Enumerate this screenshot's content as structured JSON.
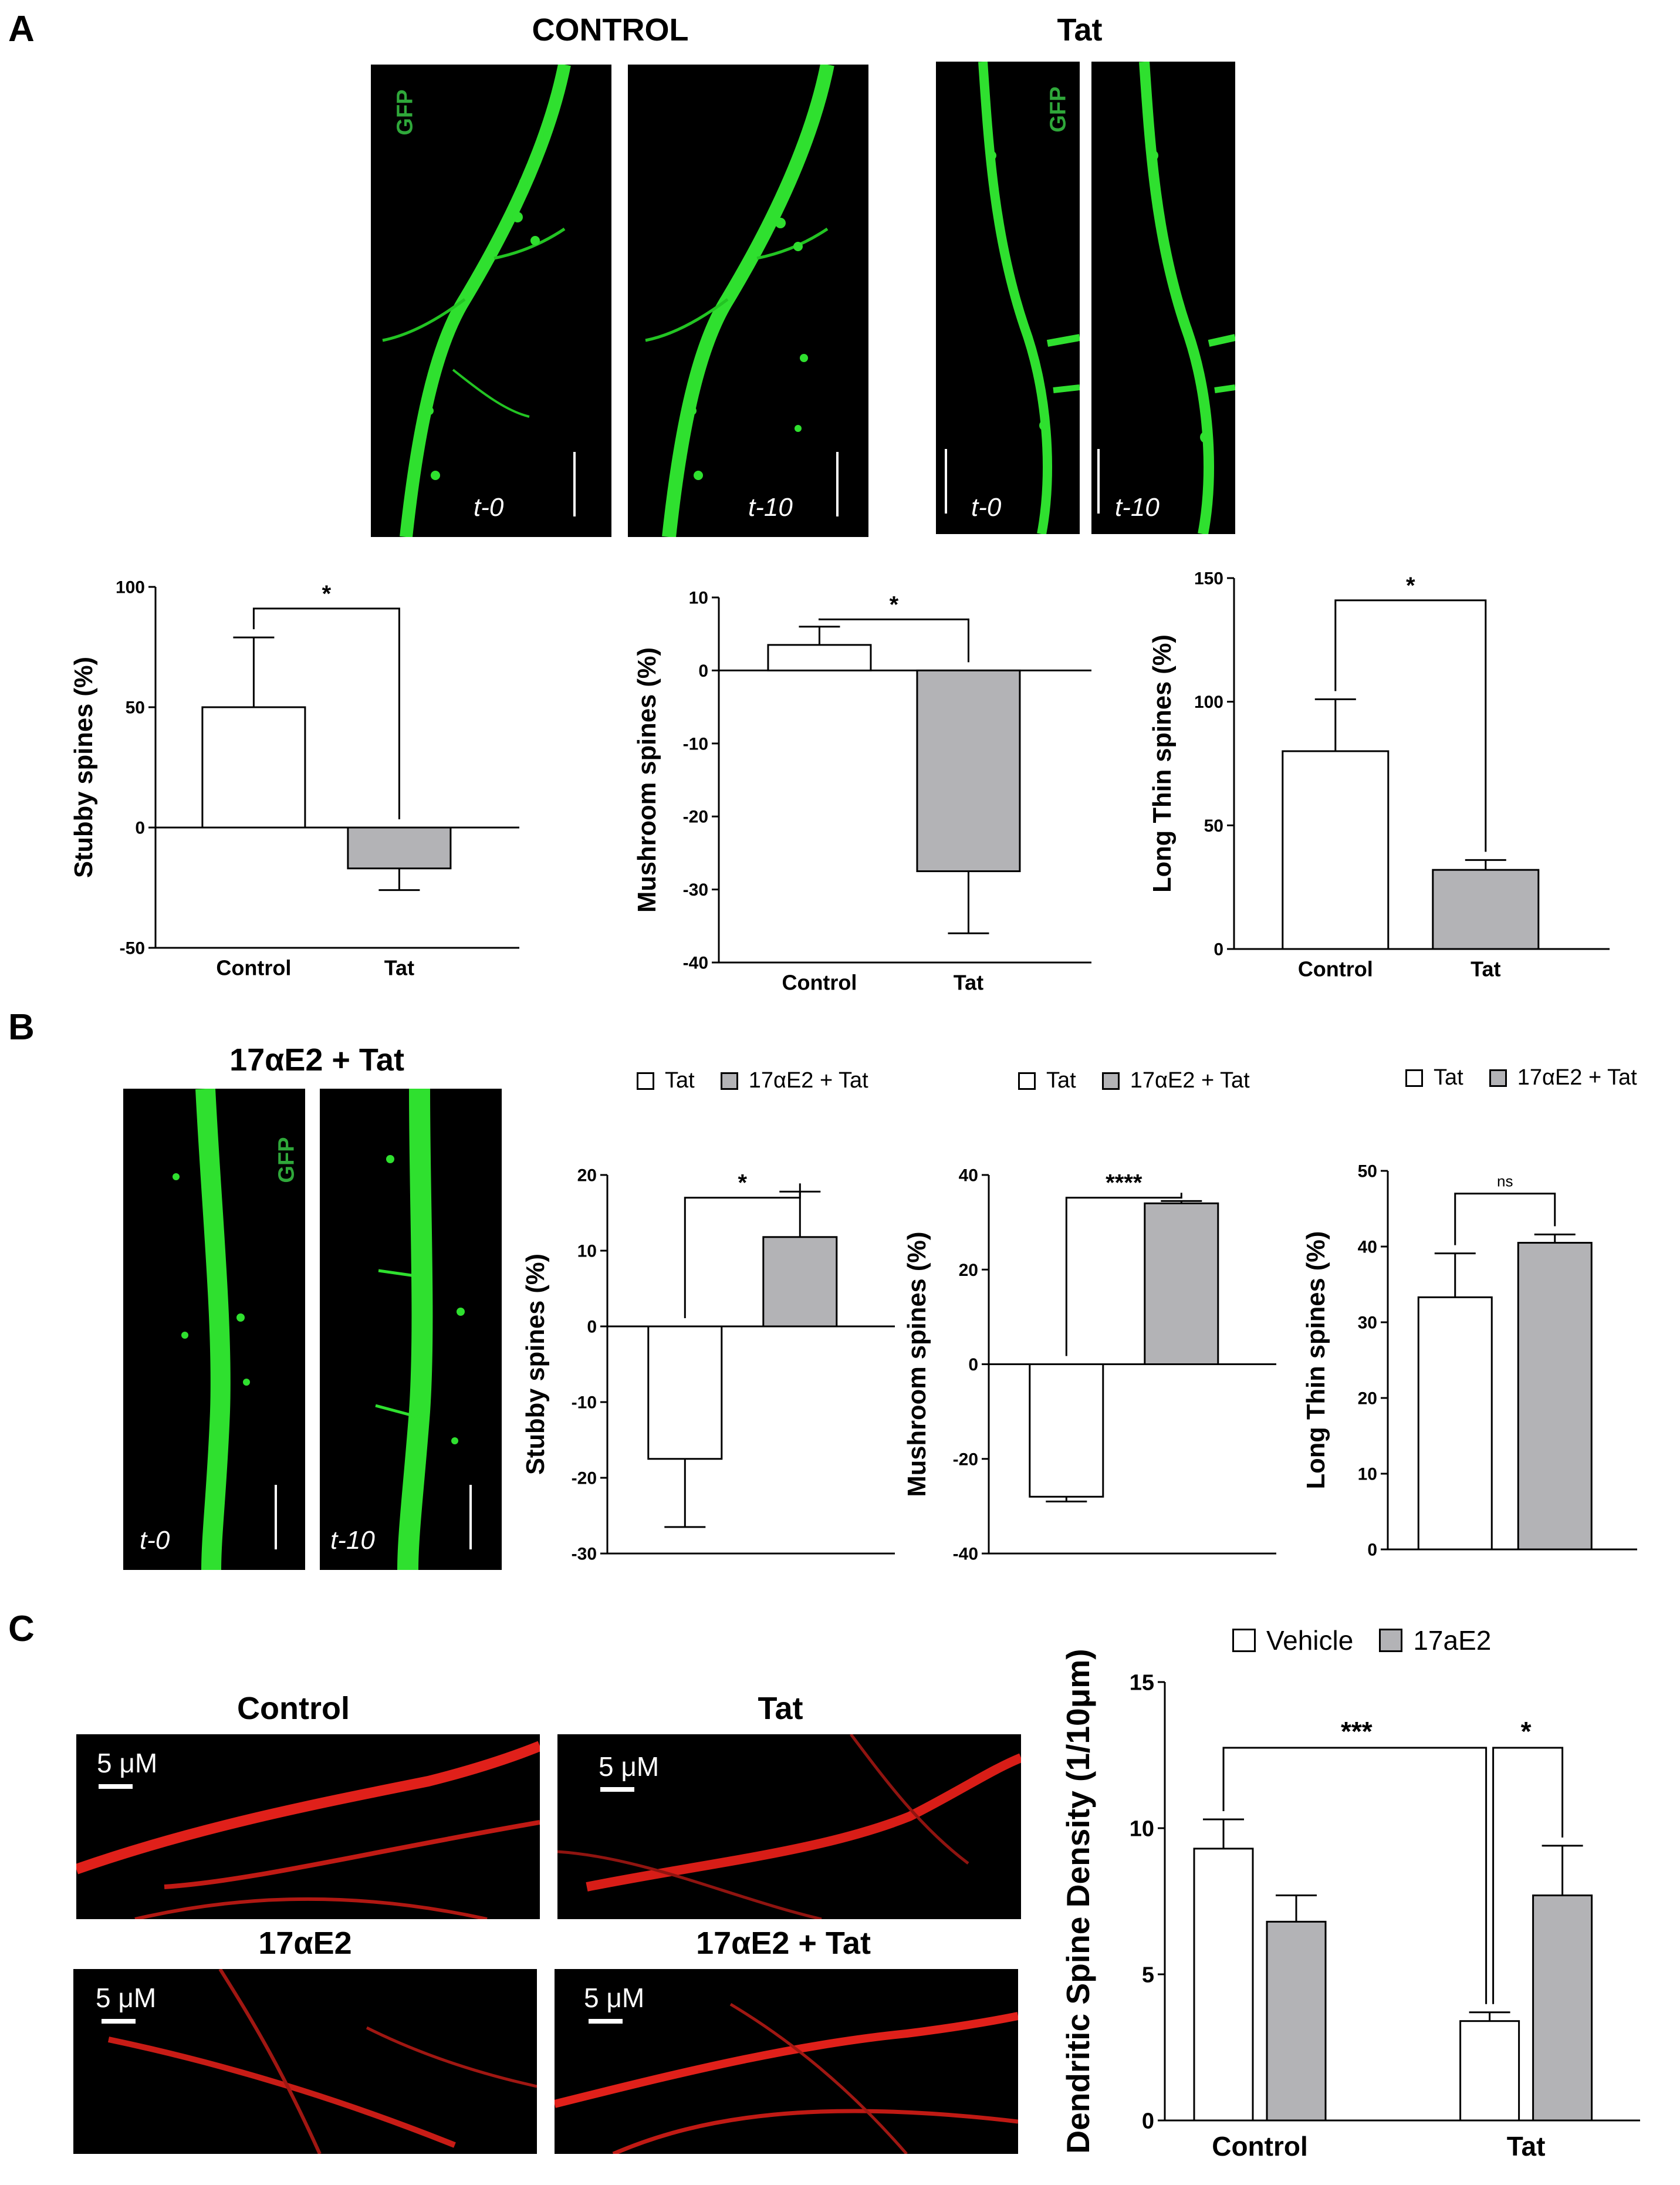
{
  "panel_labels": {
    "a": "A",
    "b": "B",
    "c": "C"
  },
  "panelA": {
    "control_title": "CONTROL",
    "tat_title": "Tat",
    "gfp": "GFP",
    "t0": "t-0",
    "t10": "t-10"
  },
  "panelB": {
    "title": "17αE2 + Tat",
    "gfp": "GFP",
    "t0": "t-0",
    "t10": "t-10",
    "legend": [
      "Tat",
      "17αE2 + Tat"
    ]
  },
  "panelC": {
    "titles": [
      "Control",
      "Tat",
      "17αE2",
      "17αE2 + Tat"
    ],
    "scale_label": "5 μM",
    "legend": [
      "Vehicle",
      "17aE2"
    ]
  },
  "colors": {
    "white_bar": "#ffffff",
    "gray_bar": "#b3b3b6",
    "gfp_green": "#2fa83a",
    "red_stain": "#e0201a"
  },
  "chart_data": [
    {
      "id": "A1",
      "type": "bar",
      "ylabel": "Stubby spines (%)",
      "categories": [
        "Control",
        "Tat"
      ],
      "values": [
        50,
        -17
      ],
      "errors": [
        29,
        9
      ],
      "ylim": [
        -50,
        100
      ],
      "yticks": [
        -50,
        0,
        50,
        100
      ],
      "sig": [
        {
          "from": 0,
          "to": 1,
          "label": "*"
        }
      ]
    },
    {
      "id": "A2",
      "type": "bar",
      "ylabel": "Mushroom spines (%)",
      "categories": [
        "Control",
        "Tat"
      ],
      "values": [
        3.5,
        -27.5
      ],
      "errors": [
        2.5,
        8.5
      ],
      "ylim": [
        -40,
        10
      ],
      "yticks": [
        -40,
        -30,
        -20,
        -10,
        0,
        10
      ],
      "sig": [
        {
          "from": 0,
          "to": 1,
          "label": "*"
        }
      ]
    },
    {
      "id": "A3",
      "type": "bar",
      "ylabel": "Long Thin spines (%)",
      "categories": [
        "Control",
        "Tat"
      ],
      "values": [
        80,
        32
      ],
      "errors": [
        21,
        4
      ],
      "ylim": [
        0,
        150
      ],
      "yticks": [
        0,
        50,
        100,
        150
      ],
      "sig": [
        {
          "from": 0,
          "to": 1,
          "label": "*"
        }
      ]
    },
    {
      "id": "B1",
      "type": "bar",
      "ylabel": "Stubby spines (%)",
      "categories": [
        "Tat",
        "17αE2 + Tat"
      ],
      "values": [
        -17.5,
        11.8
      ],
      "errors": [
        9,
        6
      ],
      "ylim": [
        -30,
        20
      ],
      "yticks": [
        -30,
        -20,
        -10,
        0,
        10,
        20
      ],
      "sig": [
        {
          "from": 0,
          "to": 1,
          "label": "*"
        }
      ]
    },
    {
      "id": "B2",
      "type": "bar",
      "ylabel": "Mushroom spines (%)",
      "categories": [
        "Tat",
        "17αE2 + Tat"
      ],
      "values": [
        -28,
        34
      ],
      "errors": [
        1,
        0.5
      ],
      "ylim": [
        -40,
        40
      ],
      "yticks": [
        -40,
        -20,
        0,
        20,
        40
      ],
      "sig": [
        {
          "from": 0,
          "to": 1,
          "label": "****"
        }
      ]
    },
    {
      "id": "B3",
      "type": "bar",
      "ylabel": "Long Thin spines (%)",
      "categories": [
        "Tat",
        "17αE2 + Tat"
      ],
      "values": [
        33.3,
        40.5
      ],
      "errors": [
        5.8,
        1.1
      ],
      "ylim": [
        0,
        50
      ],
      "yticks": [
        0,
        10,
        20,
        30,
        40,
        50
      ],
      "sig": [
        {
          "from": 0,
          "to": 1,
          "label": "ns"
        }
      ]
    },
    {
      "id": "C",
      "type": "bar",
      "ylabel": "Dendritic Spine Density (1/10μm)",
      "categories": [
        "Control",
        "Tat"
      ],
      "series": [
        {
          "name": "Vehicle",
          "values": [
            9.3,
            3.4
          ],
          "errors": [
            1.0,
            0.3
          ]
        },
        {
          "name": "17aE2",
          "values": [
            6.8,
            7.7
          ],
          "errors": [
            0.9,
            1.7
          ]
        }
      ],
      "ylim": [
        0,
        15
      ],
      "yticks": [
        0,
        5,
        10,
        15
      ],
      "sig": [
        {
          "label": "***"
        },
        {
          "label": "*"
        }
      ]
    }
  ]
}
